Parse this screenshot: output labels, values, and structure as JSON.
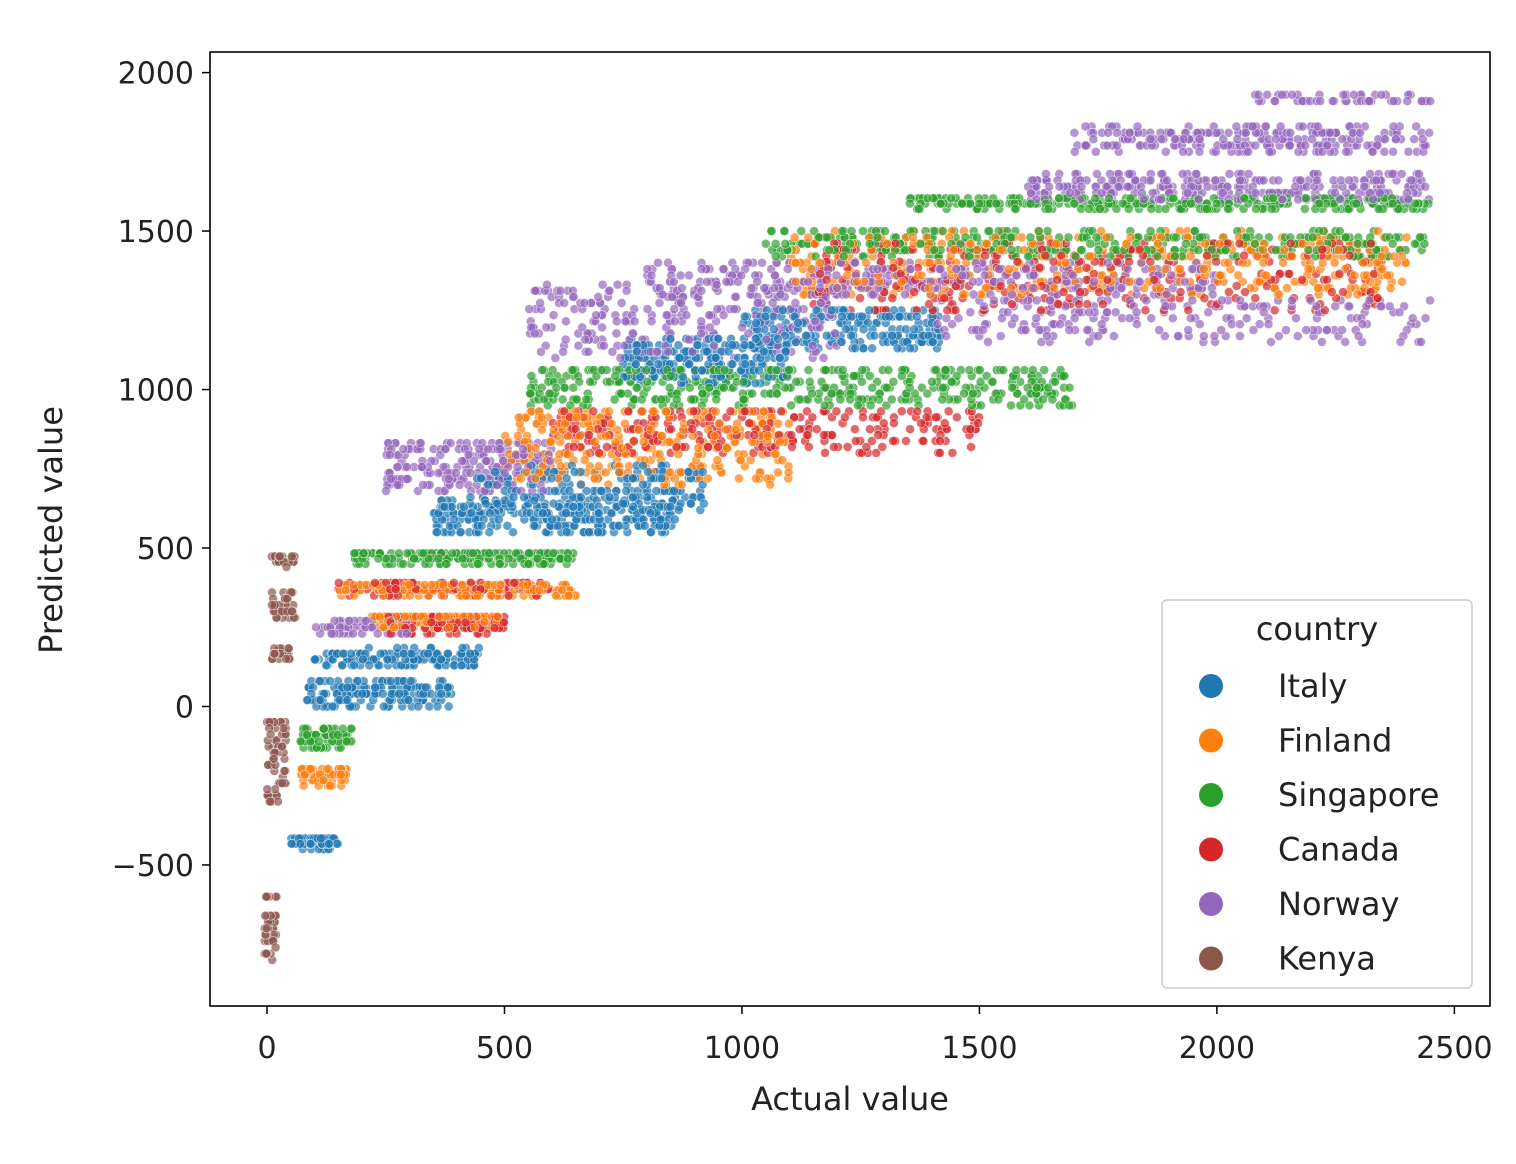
{
  "chart_data": {
    "type": "scatter",
    "title": "",
    "xlabel": "Actual value",
    "ylabel": "Predicted value",
    "xlim": [
      -120,
      2575
    ],
    "ylim": [
      -945,
      2065
    ],
    "xticks": [
      0,
      500,
      1000,
      1500,
      2000,
      2500
    ],
    "yticks": [
      -500,
      0,
      500,
      1000,
      1500,
      2000
    ],
    "xtick_labels": [
      "0",
      "500",
      "1000",
      "1500",
      "2000",
      "2500"
    ],
    "ytick_labels": [
      "−500",
      "0",
      "500",
      "1000",
      "1500",
      "2000"
    ],
    "grid": false,
    "legend": {
      "title": "country",
      "placement": "lower-right"
    },
    "point_alpha": 0.7,
    "series": [
      {
        "name": "Italy",
        "color": "#1f77b4",
        "clusters": [
          {
            "x": [
              50,
              150
            ],
            "y": [
              -450,
              -400
            ],
            "n": 60
          },
          {
            "x": [
              80,
              390
            ],
            "y": [
              0,
              80
            ],
            "n": 160
          },
          {
            "x": [
              100,
              450
            ],
            "y": [
              130,
              185
            ],
            "n": 150
          },
          {
            "x": [
              350,
              870
            ],
            "y": [
              550,
              650
            ],
            "n": 260
          },
          {
            "x": [
              420,
              920
            ],
            "y": [
              620,
              760
            ],
            "n": 200
          },
          {
            "x": [
              750,
              1100
            ],
            "y": [
              1020,
              1160
            ],
            "n": 220
          },
          {
            "x": [
              1000,
              1420
            ],
            "y": [
              1130,
              1250
            ],
            "n": 200
          }
        ]
      },
      {
        "name": "Finland",
        "color": "#ff7f0e",
        "clusters": [
          {
            "x": [
              70,
              170
            ],
            "y": [
              -250,
              -180
            ],
            "n": 70
          },
          {
            "x": [
              150,
              650
            ],
            "y": [
              350,
              400
            ],
            "n": 180
          },
          {
            "x": [
              220,
              500
            ],
            "y": [
              250,
              300
            ],
            "n": 120
          },
          {
            "x": [
              500,
              1100
            ],
            "y": [
              700,
              950
            ],
            "n": 300
          },
          {
            "x": [
              1100,
              2400
            ],
            "y": [
              1300,
              1500
            ],
            "n": 420
          }
        ]
      },
      {
        "name": "Singapore",
        "color": "#2ca02c",
        "clusters": [
          {
            "x": [
              70,
              180
            ],
            "y": [
              -130,
              -70
            ],
            "n": 70
          },
          {
            "x": [
              180,
              650
            ],
            "y": [
              450,
              500
            ],
            "n": 180
          },
          {
            "x": [
              550,
              1700
            ],
            "y": [
              950,
              1080
            ],
            "n": 400
          },
          {
            "x": [
              1050,
              2450
            ],
            "y": [
              1420,
              1500
            ],
            "n": 350
          },
          {
            "x": [
              1350,
              2450
            ],
            "y": [
              1570,
              1620
            ],
            "n": 300
          }
        ]
      },
      {
        "name": "Canada",
        "color": "#d62728",
        "clusters": [
          {
            "x": [
              250,
              500
            ],
            "y": [
              230,
              300
            ],
            "n": 120
          },
          {
            "x": [
              150,
              600
            ],
            "y": [
              350,
              390
            ],
            "n": 100
          },
          {
            "x": [
              600,
              1500
            ],
            "y": [
              800,
              950
            ],
            "n": 250
          },
          {
            "x": [
              1150,
              2350
            ],
            "y": [
              1250,
              1480
            ],
            "n": 300
          }
        ]
      },
      {
        "name": "Norway",
        "color": "#9467bd",
        "clusters": [
          {
            "x": [
              100,
              300
            ],
            "y": [
              230,
              270
            ],
            "n": 60
          },
          {
            "x": [
              250,
              600
            ],
            "y": [
              680,
              850
            ],
            "n": 200
          },
          {
            "x": [
              550,
              1200
            ],
            "y": [
              1100,
              1350
            ],
            "n": 250
          },
          {
            "x": [
              800,
              2000
            ],
            "y": [
              1300,
              1400
            ],
            "n": 300
          },
          {
            "x": [
              1400,
              2450
            ],
            "y": [
              1150,
              1300
            ],
            "n": 200
          },
          {
            "x": [
              1600,
              2450
            ],
            "y": [
              1600,
              1680
            ],
            "n": 280
          },
          {
            "x": [
              1700,
              2450
            ],
            "y": [
              1750,
              1830
            ],
            "n": 240
          },
          {
            "x": [
              2080,
              2450
            ],
            "y": [
              1910,
              1930
            ],
            "n": 50
          }
        ]
      },
      {
        "name": "Kenya",
        "color": "#8c564b",
        "clusters": [
          {
            "x": [
              0,
              60
            ],
            "y": [
              440,
              490
            ],
            "n": 25
          },
          {
            "x": [
              10,
              60
            ],
            "y": [
              280,
              360
            ],
            "n": 35
          },
          {
            "x": [
              10,
              50
            ],
            "y": [
              150,
              200
            ],
            "n": 20
          },
          {
            "x": [
              0,
              40
            ],
            "y": [
              -300,
              -30
            ],
            "n": 60
          },
          {
            "x": [
              -5,
              20
            ],
            "y": [
              -800,
              -600
            ],
            "n": 40
          }
        ]
      }
    ]
  }
}
